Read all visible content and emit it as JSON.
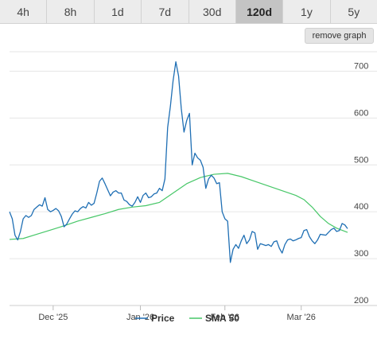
{
  "tabs": [
    {
      "label": "4h",
      "active": false
    },
    {
      "label": "8h",
      "active": false
    },
    {
      "label": "1d",
      "active": false
    },
    {
      "label": "7d",
      "active": false
    },
    {
      "label": "30d",
      "active": false
    },
    {
      "label": "120d",
      "active": true
    },
    {
      "label": "1y",
      "active": false
    },
    {
      "label": "5y",
      "active": false
    }
  ],
  "remove_graph_label": "remove graph",
  "chart_data": {
    "type": "line",
    "x_axis_labels": [
      {
        "label": "Dec '25",
        "x": 16
      },
      {
        "label": "Jan '26",
        "x": 48
      },
      {
        "label": "Feb '26",
        "x": 79
      },
      {
        "label": "Mar '26",
        "x": 107
      }
    ],
    "x_range": [
      0,
      124
    ],
    "ylim": [
      200,
      750
    ],
    "y_ticks": [
      200,
      300,
      400,
      500,
      600,
      700
    ],
    "grid": true,
    "legend_position": "bottom-center",
    "series": [
      {
        "name": "Price",
        "color": "#1f6fb4",
        "values": [
          [
            0,
            400
          ],
          [
            1,
            385
          ],
          [
            2,
            350
          ],
          [
            3,
            340
          ],
          [
            4,
            358
          ],
          [
            5,
            385
          ],
          [
            6,
            392
          ],
          [
            7,
            388
          ],
          [
            8,
            392
          ],
          [
            9,
            405
          ],
          [
            10,
            410
          ],
          [
            11,
            415
          ],
          [
            12,
            412
          ],
          [
            13,
            430
          ],
          [
            14,
            405
          ],
          [
            15,
            400
          ],
          [
            16,
            403
          ],
          [
            17,
            407
          ],
          [
            18,
            402
          ],
          [
            19,
            390
          ],
          [
            20,
            368
          ],
          [
            21,
            374
          ],
          [
            22,
            385
          ],
          [
            23,
            395
          ],
          [
            24,
            402
          ],
          [
            25,
            400
          ],
          [
            26,
            407
          ],
          [
            27,
            411
          ],
          [
            28,
            408
          ],
          [
            29,
            420
          ],
          [
            30,
            414
          ],
          [
            31,
            418
          ],
          [
            32,
            440
          ],
          [
            33,
            465
          ],
          [
            34,
            472
          ],
          [
            35,
            460
          ],
          [
            36,
            447
          ],
          [
            37,
            434
          ],
          [
            38,
            442
          ],
          [
            39,
            445
          ],
          [
            40,
            440
          ],
          [
            41,
            440
          ],
          [
            42,
            425
          ],
          [
            43,
            422
          ],
          [
            44,
            415
          ],
          [
            45,
            412
          ],
          [
            46,
            420
          ],
          [
            47,
            432
          ],
          [
            48,
            420
          ],
          [
            49,
            435
          ],
          [
            50,
            440
          ],
          [
            51,
            430
          ],
          [
            52,
            432
          ],
          [
            53,
            438
          ],
          [
            54,
            440
          ],
          [
            55,
            450
          ],
          [
            56,
            445
          ],
          [
            57,
            470
          ],
          [
            58,
            580
          ],
          [
            59,
            625
          ],
          [
            60,
            680
          ],
          [
            61,
            720
          ],
          [
            62,
            690
          ],
          [
            63,
            620
          ],
          [
            64,
            570
          ],
          [
            65,
            595
          ],
          [
            66,
            610
          ],
          [
            67,
            500
          ],
          [
            68,
            525
          ],
          [
            69,
            515
          ],
          [
            70,
            510
          ],
          [
            71,
            495
          ],
          [
            72,
            450
          ],
          [
            73,
            470
          ],
          [
            74,
            478
          ],
          [
            75,
            472
          ],
          [
            76,
            460
          ],
          [
            77,
            462
          ],
          [
            78,
            400
          ],
          [
            79,
            385
          ],
          [
            80,
            380
          ],
          [
            81,
            292
          ],
          [
            82,
            320
          ],
          [
            83,
            330
          ],
          [
            84,
            322
          ],
          [
            85,
            338
          ],
          [
            86,
            350
          ],
          [
            87,
            332
          ],
          [
            88,
            340
          ],
          [
            89,
            358
          ],
          [
            90,
            355
          ],
          [
            91,
            320
          ],
          [
            92,
            332
          ],
          [
            93,
            330
          ],
          [
            94,
            328
          ],
          [
            95,
            330
          ],
          [
            96,
            326
          ],
          [
            97,
            336
          ],
          [
            98,
            338
          ],
          [
            99,
            322
          ],
          [
            100,
            312
          ],
          [
            101,
            330
          ],
          [
            102,
            340
          ],
          [
            103,
            342
          ],
          [
            104,
            338
          ],
          [
            105,
            340
          ],
          [
            106,
            343
          ],
          [
            107,
            345
          ],
          [
            108,
            360
          ],
          [
            109,
            362
          ],
          [
            110,
            347
          ],
          [
            111,
            338
          ],
          [
            112,
            332
          ],
          [
            113,
            340
          ],
          [
            114,
            352
          ],
          [
            115,
            351
          ],
          [
            116,
            350
          ],
          [
            117,
            356
          ],
          [
            118,
            362
          ],
          [
            119,
            365
          ],
          [
            120,
            358
          ],
          [
            121,
            360
          ],
          [
            122,
            375
          ],
          [
            123,
            372
          ],
          [
            124,
            364
          ]
        ]
      },
      {
        "name": "SMA 50",
        "color": "#47c768",
        "values": [
          [
            0,
            341
          ],
          [
            5,
            343
          ],
          [
            10,
            352
          ],
          [
            15,
            361
          ],
          [
            20,
            370
          ],
          [
            25,
            380
          ],
          [
            30,
            388
          ],
          [
            35,
            396
          ],
          [
            40,
            405
          ],
          [
            45,
            410
          ],
          [
            50,
            413
          ],
          [
            55,
            420
          ],
          [
            60,
            440
          ],
          [
            65,
            460
          ],
          [
            70,
            473
          ],
          [
            75,
            480
          ],
          [
            80,
            482
          ],
          [
            85,
            475
          ],
          [
            90,
            465
          ],
          [
            95,
            455
          ],
          [
            100,
            445
          ],
          [
            105,
            435
          ],
          [
            108,
            426
          ],
          [
            111,
            410
          ],
          [
            114,
            390
          ],
          [
            117,
            375
          ],
          [
            120,
            365
          ],
          [
            124,
            356
          ]
        ]
      }
    ]
  }
}
